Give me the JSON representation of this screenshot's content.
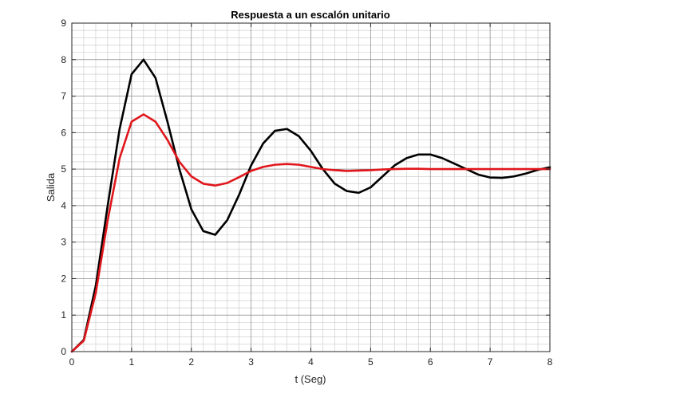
{
  "chart_data": {
    "type": "line",
    "title": "Respuesta a un escalón unitario",
    "xlabel": "t (Seg)",
    "ylabel": "Salida",
    "xlim": [
      0,
      8
    ],
    "ylim": [
      0,
      9
    ],
    "xticks": [
      "0",
      "1",
      "2",
      "3",
      "4",
      "5",
      "6",
      "7",
      "8"
    ],
    "yticks": [
      "0",
      "1",
      "2",
      "3",
      "4",
      "5",
      "6",
      "7",
      "8",
      "9"
    ],
    "grid": true,
    "minor_grid": true,
    "legend": "none",
    "series": [
      {
        "color": "#000000",
        "x": [
          0,
          0.2,
          0.4,
          0.6,
          0.8,
          1.0,
          1.2,
          1.4,
          1.6,
          1.8,
          2.0,
          2.2,
          2.4,
          2.6,
          2.8,
          3.0,
          3.2,
          3.4,
          3.6,
          3.8,
          4.0,
          4.2,
          4.4,
          4.6,
          4.8,
          5.0,
          5.2,
          5.4,
          5.6,
          5.8,
          6.0,
          6.2,
          6.4,
          6.6,
          6.8,
          7.0,
          7.2,
          7.4,
          7.6,
          7.8,
          8.0
        ],
        "y": [
          0,
          0.32,
          1.8,
          4.0,
          6.1,
          7.6,
          8.0,
          7.5,
          6.3,
          5.0,
          3.9,
          3.3,
          3.2,
          3.6,
          4.3,
          5.1,
          5.7,
          6.05,
          6.1,
          5.9,
          5.5,
          5.0,
          4.6,
          4.4,
          4.35,
          4.5,
          4.8,
          5.1,
          5.3,
          5.4,
          5.4,
          5.3,
          5.15,
          5.0,
          4.85,
          4.77,
          4.76,
          4.8,
          4.88,
          4.98,
          5.05
        ]
      },
      {
        "color": "#e0161b",
        "x": [
          0,
          0.2,
          0.4,
          0.6,
          0.8,
          1.0,
          1.2,
          1.4,
          1.6,
          1.8,
          2.0,
          2.2,
          2.4,
          2.6,
          2.8,
          3.0,
          3.2,
          3.4,
          3.6,
          3.8,
          4.0,
          4.2,
          4.4,
          4.6,
          4.8,
          5.0,
          5.2,
          5.4,
          5.6,
          5.8,
          6.0,
          6.4,
          6.8,
          7.2,
          7.6,
          8.0
        ],
        "y": [
          0,
          0.3,
          1.6,
          3.6,
          5.3,
          6.3,
          6.5,
          6.3,
          5.8,
          5.2,
          4.8,
          4.6,
          4.55,
          4.62,
          4.78,
          4.95,
          5.06,
          5.12,
          5.14,
          5.12,
          5.06,
          5.0,
          4.97,
          4.95,
          4.96,
          4.97,
          4.99,
          5.0,
          5.01,
          5.01,
          5.0,
          5.0,
          5.0,
          5.0,
          5.0,
          5.0
        ]
      }
    ]
  }
}
